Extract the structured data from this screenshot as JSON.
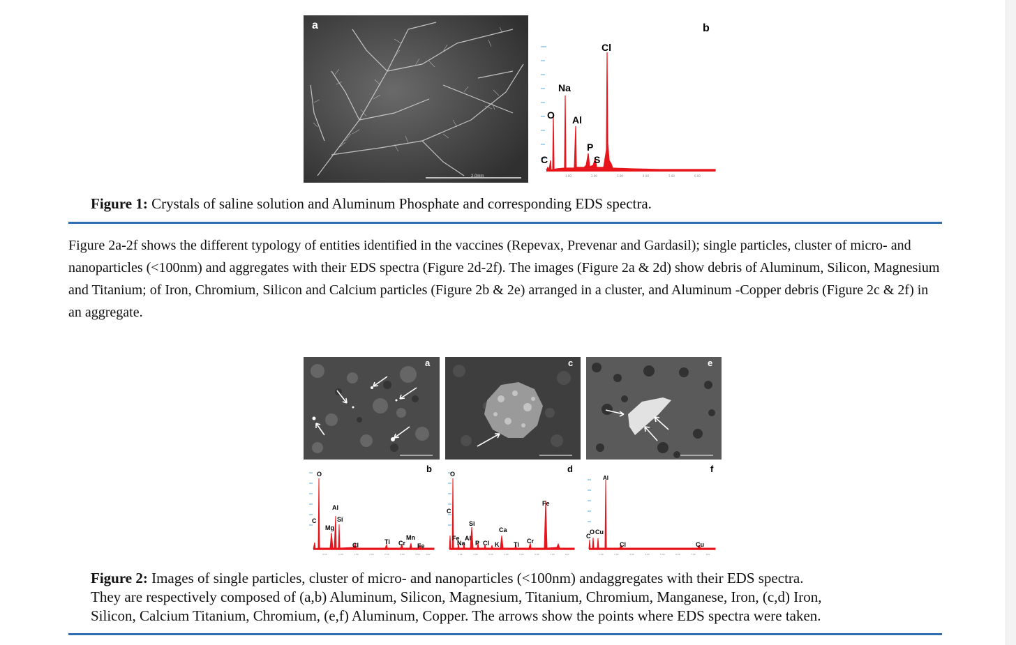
{
  "figure1": {
    "panel_a_letter": "a",
    "panel_a_scale": "2.0mm",
    "panel_b_letter": "b",
    "spectrum_peaks": [
      "C",
      "O",
      "Na",
      "Al",
      "P",
      "S",
      "Cl"
    ],
    "caption_label": "Figure 1:",
    "caption_text": " Crystals of saline solution and Aluminum Phosphate and corresponding EDS spectra."
  },
  "body_paragraph": "Figure 2a-2f shows the different typology of entities identified in the vaccines (Repevax, Prevenar and Gardasil); single particles, cluster of micro- and nanoparticles (<100nm) and aggregates with their EDS spectra (Figure 2d-2f). The images (Figure 2a & 2d) show debris of Aluminum, Silicon, Magnesium and Titanium; of Iron, Chromium, Silicon and Calcium particles (Figure 2b & 2e) arranged in a cluster, and Aluminum -Copper debris (Figure 2c & 2f) in an aggregate.",
  "figure2": {
    "panel_letters": [
      "a",
      "c",
      "e",
      "b",
      "d",
      "f"
    ],
    "spectrum_b_peaks": [
      "O",
      "C",
      "Mg",
      "Al",
      "Si",
      "Cl",
      "Ti",
      "Cr",
      "Mn",
      "Fe"
    ],
    "spectrum_d_peaks": [
      "O",
      "C",
      "Fe",
      "Na",
      "Al",
      "Si",
      "P",
      "Cl",
      "K",
      "Ca",
      "Ti",
      "Cr",
      "Fe"
    ],
    "spectrum_f_peaks": [
      "Al",
      "O",
      "C",
      "Cu",
      "Cl",
      "Cu"
    ],
    "caption_label": "Figure 2:",
    "caption_line1": " Images of single particles, cluster of micro- and nanoparticles (<100nm) andaggregates with their EDS spectra.",
    "caption_line2": "They are respectively composed of (a,b) Aluminum, Silicon, Magnesium, Titanium, Chromium, Manganese, Iron, (c,d) Iron,",
    "caption_line3": "Silicon, Calcium Titanium, Chromium, (e,f) Aluminum, Copper. The arrows show the points where EDS spectra were taken."
  },
  "colors": {
    "spectrum": "#e8141c",
    "rule": "#2f6db3"
  }
}
